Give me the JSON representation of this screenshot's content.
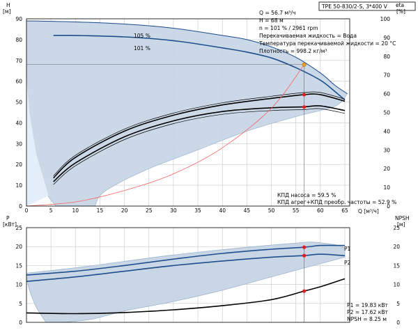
{
  "title": "TPE 50-830/2-S, 3*400 V",
  "info_lines": [
    "Q = 56.7 м³/ч",
    "H = 68 м",
    "n = 101 % / 2961 rpm",
    "Перекачиваемая жидкость = Вода",
    "Температура перекачиваемой жидкости = 20 °C",
    "Плотность = 998.2 кг/м³"
  ],
  "eff_info": [
    "КПД насоса = 59.5 %",
    "КПД агрег+КПД преобр. частоты = 52.9 %"
  ],
  "power_info": [
    "P1 = 19.83 кВт",
    "P2 = 17.62 кВт",
    "NPSH = 8.25 м"
  ],
  "axis_labels": {
    "h_left_top": "H",
    "h_left_unit": "[м]",
    "eta_top": "eta",
    "eta_unit": "[%]",
    "q": "Q [м³/ч]",
    "p_top": "P",
    "p_unit": "[кВт]",
    "npsh_top": "NPSH",
    "npsh_unit": "[м]"
  },
  "colors": {
    "curve": "#1f4e8c",
    "band": "#c8d6e6",
    "band_edge": "#9fb6cf",
    "duty": "#e8a020",
    "marker": "#e02020",
    "system": "#ff6060",
    "black": "#000000"
  },
  "chart_data": [
    {
      "type": "line",
      "x_ticks": [
        0,
        5,
        10,
        15,
        20,
        25,
        30,
        35,
        40,
        45,
        50,
        55,
        60,
        65
      ],
      "xlim": [
        0,
        66
      ],
      "left_ylabel": "H [м]",
      "left_ylim": [
        0,
        90
      ],
      "left_ticks": [
        0,
        10,
        20,
        30,
        40,
        50,
        60,
        70,
        80,
        90
      ],
      "right_ylabel": "eta [%]",
      "right_ylim": [
        0,
        100
      ],
      "right_ticks": [
        0,
        10,
        20,
        30,
        40,
        50,
        60,
        70,
        80,
        90,
        100
      ],
      "curve_labels": [
        "105 %",
        "101 %"
      ],
      "series": [
        {
          "name": "105 %",
          "x": [
            0,
            10,
            20,
            30,
            40,
            45,
            50,
            55,
            60,
            63,
            65.5
          ],
          "y": [
            89,
            88.5,
            87.5,
            85.5,
            82,
            80,
            76.5,
            71.5,
            64,
            58,
            54
          ]
        },
        {
          "name": "101 %",
          "x": [
            5.5,
            10,
            20,
            30,
            40,
            45,
            50,
            55,
            60,
            63,
            65
          ],
          "y": [
            82,
            82,
            81.3,
            79.5,
            76,
            74,
            71.2,
            66.5,
            60.5,
            55,
            51
          ]
        },
        {
          "x": [
            5.5,
            10,
            20,
            30,
            40,
            50,
            56.7,
            60,
            65
          ],
          "y": [
            15,
            26,
            40,
            48.5,
            54,
            57.5,
            59.5,
            59.5,
            56
          ]
        },
        {
          "x": [
            5.5,
            10,
            20,
            30,
            40,
            50,
            56.7,
            60,
            65
          ],
          "y": [
            13,
            23,
            37,
            45.5,
            50.5,
            52.5,
            53,
            53.5,
            51
          ]
        }
      ],
      "system_curve": {
        "x": [
          0,
          10,
          20,
          30,
          40,
          50,
          56.7
        ],
        "y": [
          0,
          2,
          7.5,
          15.5,
          28,
          47,
          68
        ]
      },
      "duty_point": {
        "q": 56.7,
        "h": 68
      },
      "eff_points": [
        59.5,
        52.9
      ]
    },
    {
      "type": "line",
      "x_ticks": [
        0,
        5,
        10,
        15,
        20,
        25,
        30,
        35,
        40,
        45,
        50,
        55,
        60,
        65
      ],
      "xlim": [
        0,
        66
      ],
      "left_ylabel": "P [кВт]",
      "left_ylim": [
        0,
        25
      ],
      "left_ticks": [
        0,
        5,
        10,
        15,
        20,
        25
      ],
      "right_ylabel": "NPSH [м]",
      "right_ylim": [
        0,
        25
      ],
      "right_ticks": [
        0,
        5,
        10,
        15,
        20,
        25
      ],
      "series": [
        {
          "name": "P1",
          "x": [
            0,
            10,
            20,
            30,
            40,
            50,
            56.7,
            60,
            65
          ],
          "y": [
            12.5,
            13.5,
            15,
            16.7,
            18.2,
            19.3,
            19.83,
            20.3,
            20.3
          ]
        },
        {
          "name": "P2",
          "x": [
            0,
            10,
            20,
            30,
            40,
            50,
            56.7,
            60,
            65
          ],
          "y": [
            10.8,
            12,
            13.5,
            15,
            16.2,
            17.2,
            17.62,
            18,
            17.6
          ]
        },
        {
          "name": "NPSH",
          "x": [
            0,
            10,
            20,
            30,
            40,
            50,
            56.7,
            60,
            65
          ],
          "y": [
            2.5,
            2.3,
            2.6,
            3.3,
            4.4,
            6,
            8.25,
            9.4,
            11.5
          ]
        }
      ],
      "markers": {
        "q": 56.7,
        "p1": 19.83,
        "p2": 17.62,
        "npsh": 8.25
      }
    }
  ]
}
